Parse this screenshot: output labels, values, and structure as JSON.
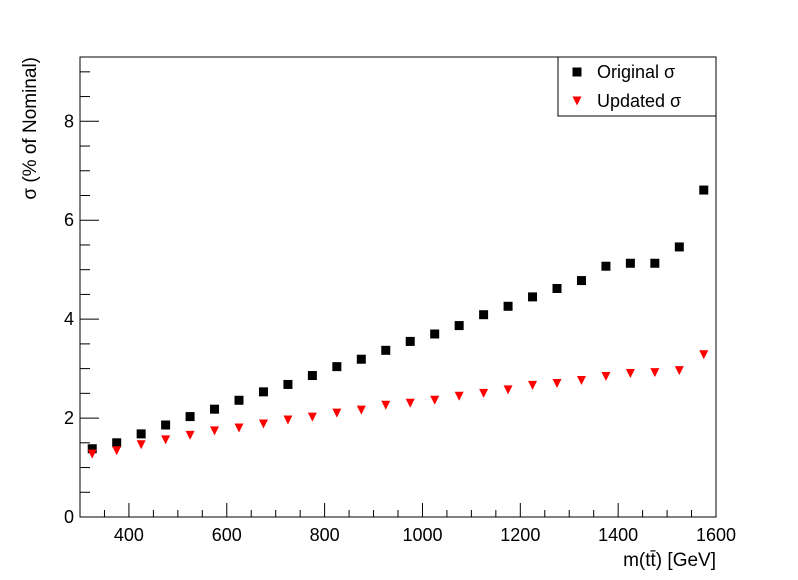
{
  "chart_data": {
    "type": "scatter",
    "xlabel": "m(tt̄) [GeV]",
    "ylabel": "σ (% of Nominal)",
    "xlim": [
      300,
      1600
    ],
    "ylim": [
      0,
      9.3
    ],
    "x_ticks": [
      400,
      600,
      800,
      1000,
      1200,
      1400,
      1600
    ],
    "x_tick_labels": [
      "400",
      "600",
      "800",
      "1000",
      "1200",
      "1400",
      "1600"
    ],
    "y_ticks": [
      0,
      2,
      4,
      6,
      8
    ],
    "y_tick_labels": [
      "0",
      "2",
      "4",
      "6",
      "8"
    ],
    "grid": false,
    "legend_position": "top-right",
    "series": [
      {
        "name": "Original σ",
        "marker": "square",
        "color": "#000000",
        "x": [
          325,
          375,
          425,
          475,
          525,
          575,
          625,
          675,
          725,
          775,
          825,
          875,
          925,
          975,
          1025,
          1075,
          1125,
          1175,
          1225,
          1275,
          1325,
          1375,
          1425,
          1475,
          1525,
          1575
        ],
        "y": [
          1.38,
          1.5,
          1.68,
          1.86,
          2.03,
          2.18,
          2.36,
          2.53,
          2.68,
          2.86,
          3.04,
          3.19,
          3.37,
          3.55,
          3.7,
          3.87,
          4.09,
          4.26,
          4.45,
          4.62,
          4.78,
          5.07,
          5.13,
          5.13,
          5.46,
          6.61
        ]
      },
      {
        "name": "Updated σ",
        "marker": "triangle-down",
        "color": "#ff0000",
        "x": [
          325,
          375,
          425,
          475,
          525,
          575,
          625,
          675,
          725,
          775,
          825,
          875,
          925,
          975,
          1025,
          1075,
          1125,
          1175,
          1225,
          1275,
          1325,
          1375,
          1425,
          1475,
          1525,
          1575
        ],
        "y": [
          1.27,
          1.34,
          1.46,
          1.56,
          1.65,
          1.74,
          1.8,
          1.88,
          1.96,
          2.02,
          2.1,
          2.16,
          2.26,
          2.3,
          2.36,
          2.44,
          2.5,
          2.57,
          2.66,
          2.7,
          2.76,
          2.84,
          2.9,
          2.92,
          2.96,
          3.28
        ]
      }
    ]
  }
}
